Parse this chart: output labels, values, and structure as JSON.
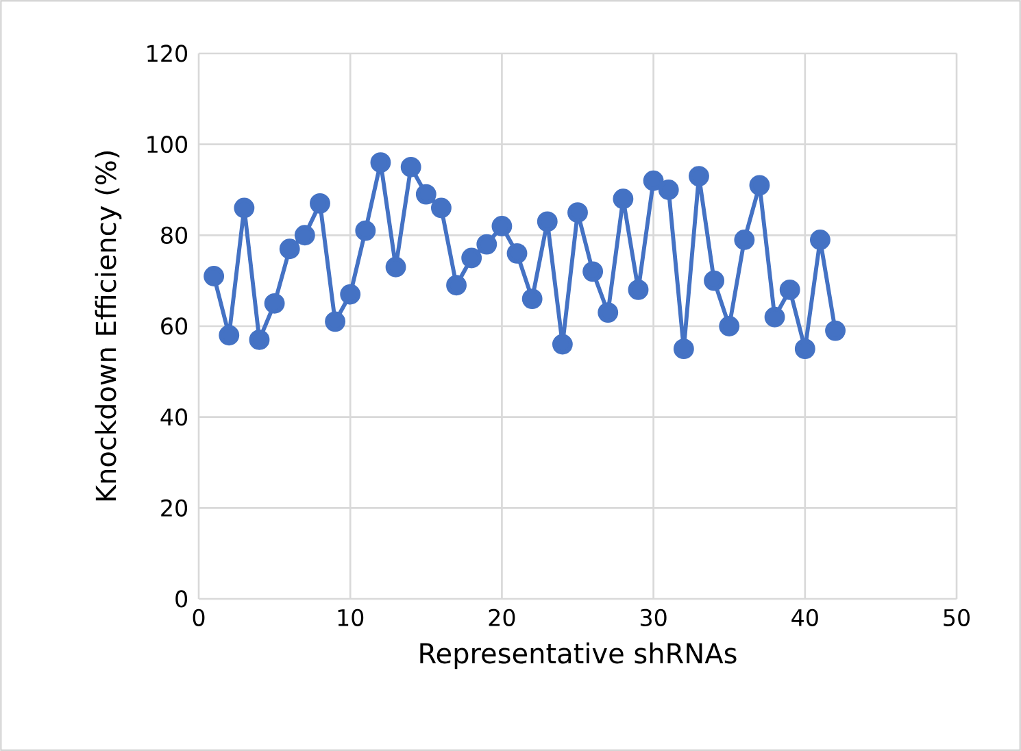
{
  "chart_data": {
    "type": "line",
    "xlabel": "Representative shRNAs",
    "ylabel": "Knockdown Efficiency (%)",
    "x": [
      1,
      2,
      3,
      4,
      5,
      6,
      7,
      8,
      9,
      10,
      11,
      12,
      13,
      14,
      15,
      16,
      17,
      18,
      19,
      20,
      21,
      22,
      23,
      24,
      25,
      26,
      27,
      28,
      29,
      30,
      31,
      32,
      33,
      34,
      35,
      36,
      37,
      38,
      39,
      40,
      41,
      42
    ],
    "values": [
      71,
      58,
      86,
      57,
      65,
      77,
      80,
      87,
      61,
      67,
      81,
      96,
      73,
      95,
      89,
      86,
      69,
      75,
      78,
      82,
      76,
      66,
      83,
      56,
      85,
      72,
      63,
      88,
      68,
      92,
      90,
      55,
      93,
      70,
      60,
      79,
      91,
      62,
      68,
      55,
      79,
      59
    ],
    "color": "#4472c4",
    "marker": "circle",
    "line_style": "solid",
    "grid": true,
    "xlim": [
      0,
      50
    ],
    "xticks": [
      0,
      10,
      20,
      30,
      40,
      50
    ],
    "ylim": [
      0,
      120
    ],
    "yticks": [
      0,
      20,
      40,
      60,
      80,
      100,
      120
    ]
  }
}
